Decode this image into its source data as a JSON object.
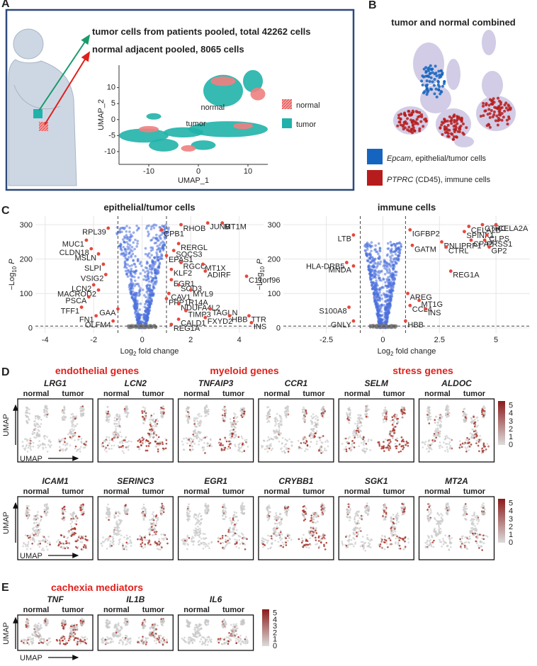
{
  "panel_labels": [
    "A",
    "B",
    "C",
    "D",
    "E"
  ],
  "panel_a": {
    "lines": [
      "tumor cells from patients pooled, total 42262 cells",
      "normal adjacent pooled, 8065 cells"
    ]
  },
  "panel_b": {
    "title": "tumor and normal combined",
    "legend": [
      {
        "gene": "Epcam",
        "text": ", epithelial/tumor cells",
        "color": "#1565c0"
      },
      {
        "gene": "PTPRC",
        "text": " (CD45), immune cells",
        "color": "#b71c1c"
      }
    ]
  },
  "chart_data": [
    {
      "type": "scatter",
      "xlabel": "UMAP_1",
      "ylabel": "UMAP_2",
      "xlim": [
        -16,
        14
      ],
      "ylim": [
        -14,
        17
      ],
      "xticks": [
        -10,
        0,
        10
      ],
      "yticks": [
        -10,
        -5,
        0,
        5,
        10
      ],
      "series": [
        {
          "name": "normal",
          "color": "#f08080"
        },
        {
          "name": "tumor",
          "color": "#20b2aa"
        }
      ],
      "annotations": [
        "normal",
        "tumor"
      ]
    },
    {
      "type": "volcano",
      "title": "epithelial/tumor cells",
      "xlabel": [
        "Log",
        "2",
        " fold change"
      ],
      "ylabel": [
        "−Log",
        "10",
        " P"
      ],
      "xlim": [
        -4.4,
        5
      ],
      "ylim": [
        -15,
        325
      ],
      "xticks": [
        -4,
        -2,
        0,
        2,
        4
      ],
      "yticks": [
        0,
        100,
        200,
        300
      ],
      "cutoff_x": [
        -1,
        1
      ],
      "cutoff_y": 5,
      "grid": true,
      "color": "#e8473c",
      "cloud_color": "#4a6fdc",
      "labels": [
        "MUC1",
        "RPL39",
        "CLDN18",
        "MSLN",
        "SLPI",
        "VSIG2",
        "LCN2",
        "MACROD2",
        "PSCA",
        "TFF1",
        "FN1",
        "OLFM4",
        "GAA",
        "RHOB",
        "CPB1",
        "JUNB",
        "MT1M",
        "RERGL",
        "SOCS3",
        "EPAS1",
        "RGCC",
        "MT1X",
        "ADIRF",
        "KLF2",
        "C11orf96",
        "EGR1",
        "SOD3",
        "MYL9",
        "CAV1",
        "PPP1R14A",
        "NDUFA4L2",
        "TIMP3",
        "CALD1",
        "REG1A",
        "TAGLN",
        "FXYD2",
        "HBB",
        "TTR",
        "INS"
      ],
      "x": [
        -2.3,
        -1.4,
        -2.1,
        -1.8,
        -1.6,
        -1.5,
        -2.0,
        -1.8,
        -2.2,
        -2.5,
        -1.9,
        -1.2,
        -1.0,
        1.6,
        0.8,
        2.7,
        3.3,
        1.5,
        1.3,
        1.0,
        1.6,
        2.5,
        2.6,
        1.2,
        4.3,
        1.2,
        1.5,
        2.0,
        1.1,
        1.0,
        1.5,
        1.8,
        1.5,
        1.2,
        2.8,
        2.6,
        3.6,
        4.4,
        4.5
      ],
      "values": [
        255,
        290,
        230,
        215,
        185,
        155,
        125,
        110,
        90,
        60,
        35,
        20,
        55,
        300,
        285,
        305,
        305,
        245,
        225,
        210,
        190,
        185,
        165,
        170,
        150,
        140,
        125,
        110,
        100,
        85,
        70,
        50,
        25,
        10,
        55,
        30,
        35,
        35,
        15
      ]
    },
    {
      "type": "volcano",
      "title": "immune cells",
      "xlabel": [
        "Log",
        "2",
        " fold change"
      ],
      "ylabel": [
        "−Log",
        "10",
        " P"
      ],
      "xlim": [
        -4.4,
        6.5
      ],
      "ylim": [
        -15,
        325
      ],
      "xticks": [
        -2.5,
        0,
        2.5,
        5
      ],
      "yticks": [
        0,
        100,
        200,
        300
      ],
      "cutoff_x": [
        -1,
        1
      ],
      "cutoff_y": 5,
      "grid": true,
      "color": "#e8473c",
      "cloud_color": "#4a6fdc",
      "labels": [
        "LTB",
        "IGFBP2",
        "HLA-DRB5",
        "MNDA",
        "GATM",
        "CELA2B",
        "CTRC",
        "CELA2A",
        "SPINK1",
        "CLPS",
        "PNLIPRP1",
        "CPA2",
        "PRSS1",
        "CTRL",
        "GP2",
        "REG1A",
        "AREG",
        "MT1G",
        "CCL4",
        "INS",
        "S100A8",
        "GNLY",
        "HBB"
      ],
      "x": [
        -1.3,
        1.2,
        -1.6,
        -1.3,
        1.3,
        3.8,
        4.4,
        5.0,
        3.6,
        4.6,
        2.6,
        3.9,
        4.5,
        2.8,
        4.7,
        3.0,
        1.1,
        1.6,
        1.2,
        1.9,
        -1.5,
        -1.3,
        1.0
      ],
      "values": [
        270,
        285,
        190,
        180,
        240,
        295,
        300,
        300,
        280,
        270,
        250,
        255,
        255,
        235,
        235,
        165,
        100,
        80,
        65,
        55,
        60,
        20,
        20
      ]
    }
  ],
  "panel_d": {
    "groups": [
      "endothelial genes",
      "myeloid genes",
      "stress genes"
    ],
    "rows": [
      [
        "LRG1",
        "LCN2",
        "TNFAIP3",
        "CCR1",
        "SELM",
        "ALDOC"
      ],
      [
        "ICAM1",
        "SERINC3",
        "EGR1",
        "CRYBB1",
        "SGK1",
        "MT2A"
      ]
    ],
    "conditions": [
      "normal",
      "tumor"
    ],
    "axis_label": "UMAP",
    "colorbar": {
      "lim": [
        0,
        5.6
      ],
      "ticks": [
        0,
        1,
        2,
        3,
        4,
        5
      ],
      "low": "#dcdcdc",
      "high": "#8b1a1a"
    }
  },
  "panel_e": {
    "group": "cachexia mediators",
    "genes": [
      "TNF",
      "IL1B",
      "IL6"
    ]
  }
}
